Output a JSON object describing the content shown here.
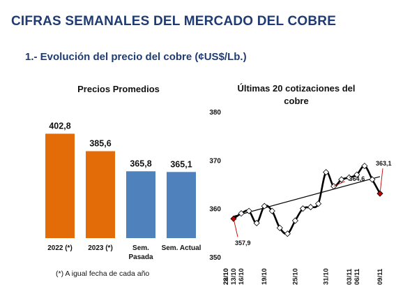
{
  "header": {
    "title": "CIFRAS SEMANALES DEL MERCADO DEL COBRE",
    "section": "1.- Evolución del precio del cobre (¢US$/Lb.)"
  },
  "footnote": "(*) A igual fecha de cada año",
  "colors": {
    "title": "#1f3b73",
    "bar_past": "#e36c09",
    "bar_recent": "#4f81bd",
    "line": "#000000",
    "marker_fill": "#ffffff",
    "highlight": "#c00000"
  },
  "chart_data": [
    {
      "type": "bar",
      "title": "Precios Promedios",
      "categories": [
        "2022 (*)",
        "2023 (*)",
        "Sem. Pasada",
        "Sem. Actual"
      ],
      "values": [
        402.8,
        385.6,
        365.8,
        365.1
      ],
      "value_labels": [
        "402,8",
        "385,6",
        "365,8",
        "365,1"
      ],
      "bar_colors": [
        "#e36c09",
        "#e36c09",
        "#4f81bd",
        "#4f81bd"
      ],
      "ylim": [
        300,
        410
      ]
    },
    {
      "type": "line",
      "title": "Últimas 20 cotizaciones del cobre",
      "x": [
        "13/10",
        "16/10",
        "17/10",
        "18/10",
        "19/10",
        "20/10",
        "23/10",
        "24/10",
        "25/10",
        "26/10",
        "27/10",
        "30/10",
        "31/10",
        "01/11",
        "02/11",
        "03/11",
        "06/11",
        "07/11",
        "08/11",
        "09/11"
      ],
      "x_tick_labels": [
        "13/10",
        "16/10",
        "19/10",
        "22/10",
        "25/10",
        "28/10",
        "31/10",
        "03/11",
        "06/11",
        "09/11"
      ],
      "values": [
        357.9,
        359.0,
        359.5,
        357.0,
        360.5,
        359.5,
        356.0,
        354.8,
        357.5,
        360.0,
        360.3,
        361.0,
        367.5,
        364.6,
        366.0,
        366.4,
        367.0,
        368.8,
        366.0,
        363.1
      ],
      "trendline": {
        "start": 358.4,
        "end": 366.6
      },
      "ylim": [
        350,
        380
      ],
      "yticks": [
        350,
        360,
        370,
        380
      ],
      "annotations": [
        {
          "index": 0,
          "label": "357,9"
        },
        {
          "index": 13,
          "label": "364,6"
        },
        {
          "index": 19,
          "label": "363,1"
        }
      ]
    }
  ]
}
